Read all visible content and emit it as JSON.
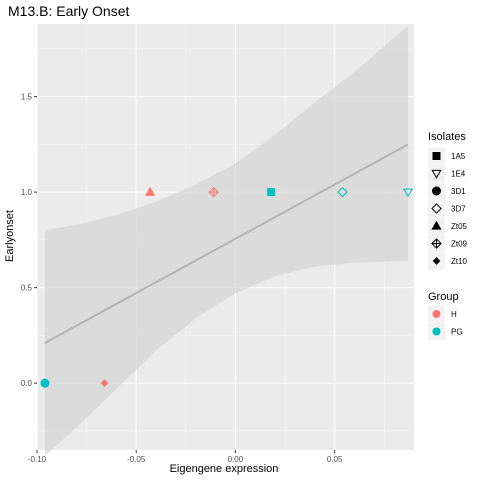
{
  "chart_data": {
    "type": "scatter",
    "title": "M13.B: Early Onset",
    "xlabel": "Eigengene expression",
    "ylabel": "Earlyonset",
    "xlim": [
      -0.1,
      0.09
    ],
    "ylim": [
      -0.35,
      1.88
    ],
    "x_ticks": [
      -0.1,
      -0.05,
      0.0,
      0.05
    ],
    "x_tick_labels": [
      "-0.10",
      "-0.05",
      "0.00",
      "0.05"
    ],
    "y_ticks": [
      0.0,
      0.5,
      1.0,
      1.5
    ],
    "y_tick_labels": [
      "0.0",
      "0.5",
      "1.0",
      "1.5"
    ],
    "grid": true,
    "legend_position": "right",
    "points": [
      {
        "x": -0.096,
        "y": 0.0,
        "isolate": "3D1",
        "group": "PG"
      },
      {
        "x": -0.066,
        "y": 0.0,
        "isolate": "Zt10",
        "group": "H"
      },
      {
        "x": -0.043,
        "y": 1.0,
        "isolate": "Zt05",
        "group": "H"
      },
      {
        "x": -0.011,
        "y": 1.0,
        "isolate": "Zt09",
        "group": "H"
      },
      {
        "x": 0.018,
        "y": 1.0,
        "isolate": "1A5",
        "group": "PG"
      },
      {
        "x": 0.054,
        "y": 1.0,
        "isolate": "3D7",
        "group": "PG"
      },
      {
        "x": 0.087,
        "y": 1.0,
        "isolate": "1E4",
        "group": "PG"
      }
    ],
    "trend_line": {
      "x": [
        -0.096,
        0.087
      ],
      "y": [
        0.21,
        1.25
      ]
    },
    "confidence_band": {
      "x": [
        -0.096,
        -0.08,
        -0.06,
        -0.04,
        -0.02,
        0.0,
        0.02,
        0.04,
        0.06,
        0.087
      ],
      "upper": [
        0.8,
        0.83,
        0.88,
        0.95,
        1.04,
        1.15,
        1.3,
        1.47,
        1.63,
        1.87
      ],
      "lower": [
        -0.38,
        -0.23,
        -0.03,
        0.17,
        0.34,
        0.47,
        0.56,
        0.61,
        0.63,
        0.64
      ]
    },
    "legend_isolates": {
      "title": "Isolates",
      "items": [
        {
          "label": "1A5",
          "shape": "square-filled"
        },
        {
          "label": "1E4",
          "shape": "triangle-down-open"
        },
        {
          "label": "3D1",
          "shape": "circle-filled"
        },
        {
          "label": "3D7",
          "shape": "diamond-open"
        },
        {
          "label": "Zt05",
          "shape": "triangle-up-filled"
        },
        {
          "label": "Zt09",
          "shape": "diamond-plus-open"
        },
        {
          "label": "Zt10",
          "shape": "diamond-filled"
        }
      ]
    },
    "legend_group": {
      "title": "Group",
      "items": [
        {
          "label": "H",
          "color": "#F8766D"
        },
        {
          "label": "PG",
          "color": "#00BFC4"
        }
      ]
    },
    "colors": {
      "H": "#F8766D",
      "PG": "#00BFC4",
      "panel_background": "#EBEBEB",
      "grid_major": "#FFFFFF",
      "trend_line": "#B3B3B3",
      "band_fill": "#D6D6D6"
    }
  }
}
